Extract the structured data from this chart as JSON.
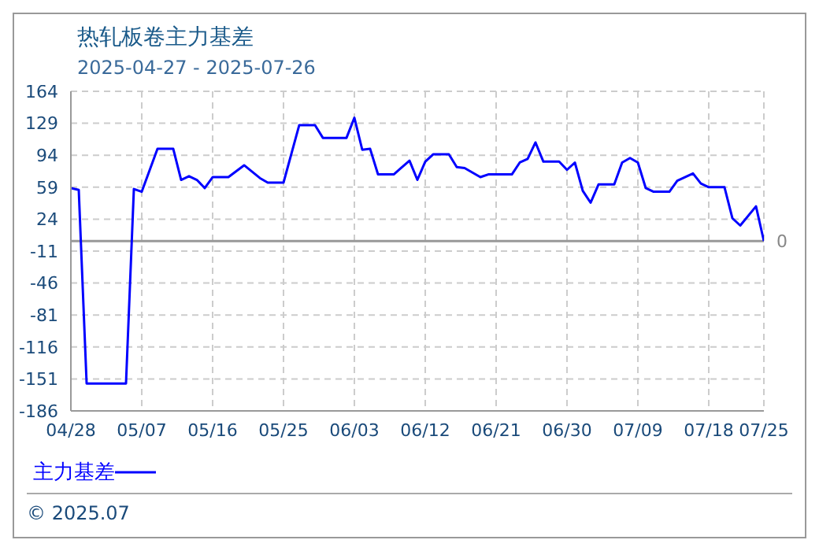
{
  "chart_data": {
    "type": "line",
    "title": "热轧板卷主力基差",
    "subtitle": "2025-04-27 - 2025-07-26",
    "x": [
      "2025-04-28",
      "2025-04-29",
      "2025-04-30",
      "2025-05-05",
      "2025-05-06",
      "2025-05-07",
      "2025-05-09",
      "2025-05-11",
      "2025-05-12",
      "2025-05-13",
      "2025-05-14",
      "2025-05-15",
      "2025-05-16",
      "2025-05-18",
      "2025-05-20",
      "2025-05-22",
      "2025-05-23",
      "2025-05-25",
      "2025-05-27",
      "2025-05-29",
      "2025-05-30",
      "2025-06-02",
      "2025-06-03",
      "2025-06-04",
      "2025-06-05",
      "2025-06-06",
      "2025-06-08",
      "2025-06-10",
      "2025-06-11",
      "2025-06-12",
      "2025-06-13",
      "2025-06-15",
      "2025-06-16",
      "2025-06-17",
      "2025-06-19",
      "2025-06-20",
      "2025-06-23",
      "2025-06-24",
      "2025-06-25",
      "2025-06-26",
      "2025-06-27",
      "2025-06-29",
      "2025-06-30",
      "2025-07-01",
      "2025-07-02",
      "2025-07-03",
      "2025-07-04",
      "2025-07-06",
      "2025-07-07",
      "2025-07-08",
      "2025-07-09",
      "2025-07-10",
      "2025-07-11",
      "2025-07-13",
      "2025-07-14",
      "2025-07-16",
      "2025-07-17",
      "2025-07-18",
      "2025-07-20",
      "2025-07-21",
      "2025-07-22",
      "2025-07-24",
      "2025-07-25"
    ],
    "series": [
      {
        "name": "主力基差",
        "color": "#0000ff",
        "values": [
          58,
          56,
          -156,
          -156,
          57,
          54,
          101,
          101,
          67,
          71,
          67,
          58,
          70,
          70,
          83,
          69,
          64,
          64,
          127,
          127,
          113,
          113,
          135,
          100,
          101,
          73,
          73,
          88,
          67,
          87,
          95,
          95,
          81,
          80,
          70,
          73,
          73,
          86,
          90,
          108,
          87,
          87,
          78,
          86,
          55,
          42,
          62,
          62,
          86,
          91,
          86,
          58,
          54,
          54,
          66,
          74,
          63,
          59,
          59,
          25,
          17,
          38,
          0
        ]
      }
    ],
    "xlim": [
      "2025-04-28",
      "2025-07-25"
    ],
    "xticks": [
      {
        "value": "2025-04-28",
        "label": "04/28"
      },
      {
        "value": "2025-05-07",
        "label": "05/07"
      },
      {
        "value": "2025-05-16",
        "label": "05/16"
      },
      {
        "value": "2025-05-25",
        "label": "05/25"
      },
      {
        "value": "2025-06-03",
        "label": "06/03"
      },
      {
        "value": "2025-06-12",
        "label": "06/12"
      },
      {
        "value": "2025-06-21",
        "label": "06/21"
      },
      {
        "value": "2025-06-30",
        "label": "06/30"
      },
      {
        "value": "2025-07-09",
        "label": "07/09"
      },
      {
        "value": "2025-07-18",
        "label": "07/18"
      },
      {
        "value": "2025-07-25",
        "label": "07/25"
      }
    ],
    "ylim": [
      -186,
      164
    ],
    "yticks": [
      164,
      129,
      94,
      59,
      24,
      -11,
      -46,
      -81,
      -116,
      -151,
      -186
    ],
    "ref_lines": [
      {
        "axis": "y",
        "value": 0,
        "label": "0",
        "color": "#999999"
      }
    ],
    "grid": true,
    "legend": "bottom left",
    "marker": "none",
    "line_style": "solid",
    "annotations": [
      "© 2025.07"
    ]
  }
}
